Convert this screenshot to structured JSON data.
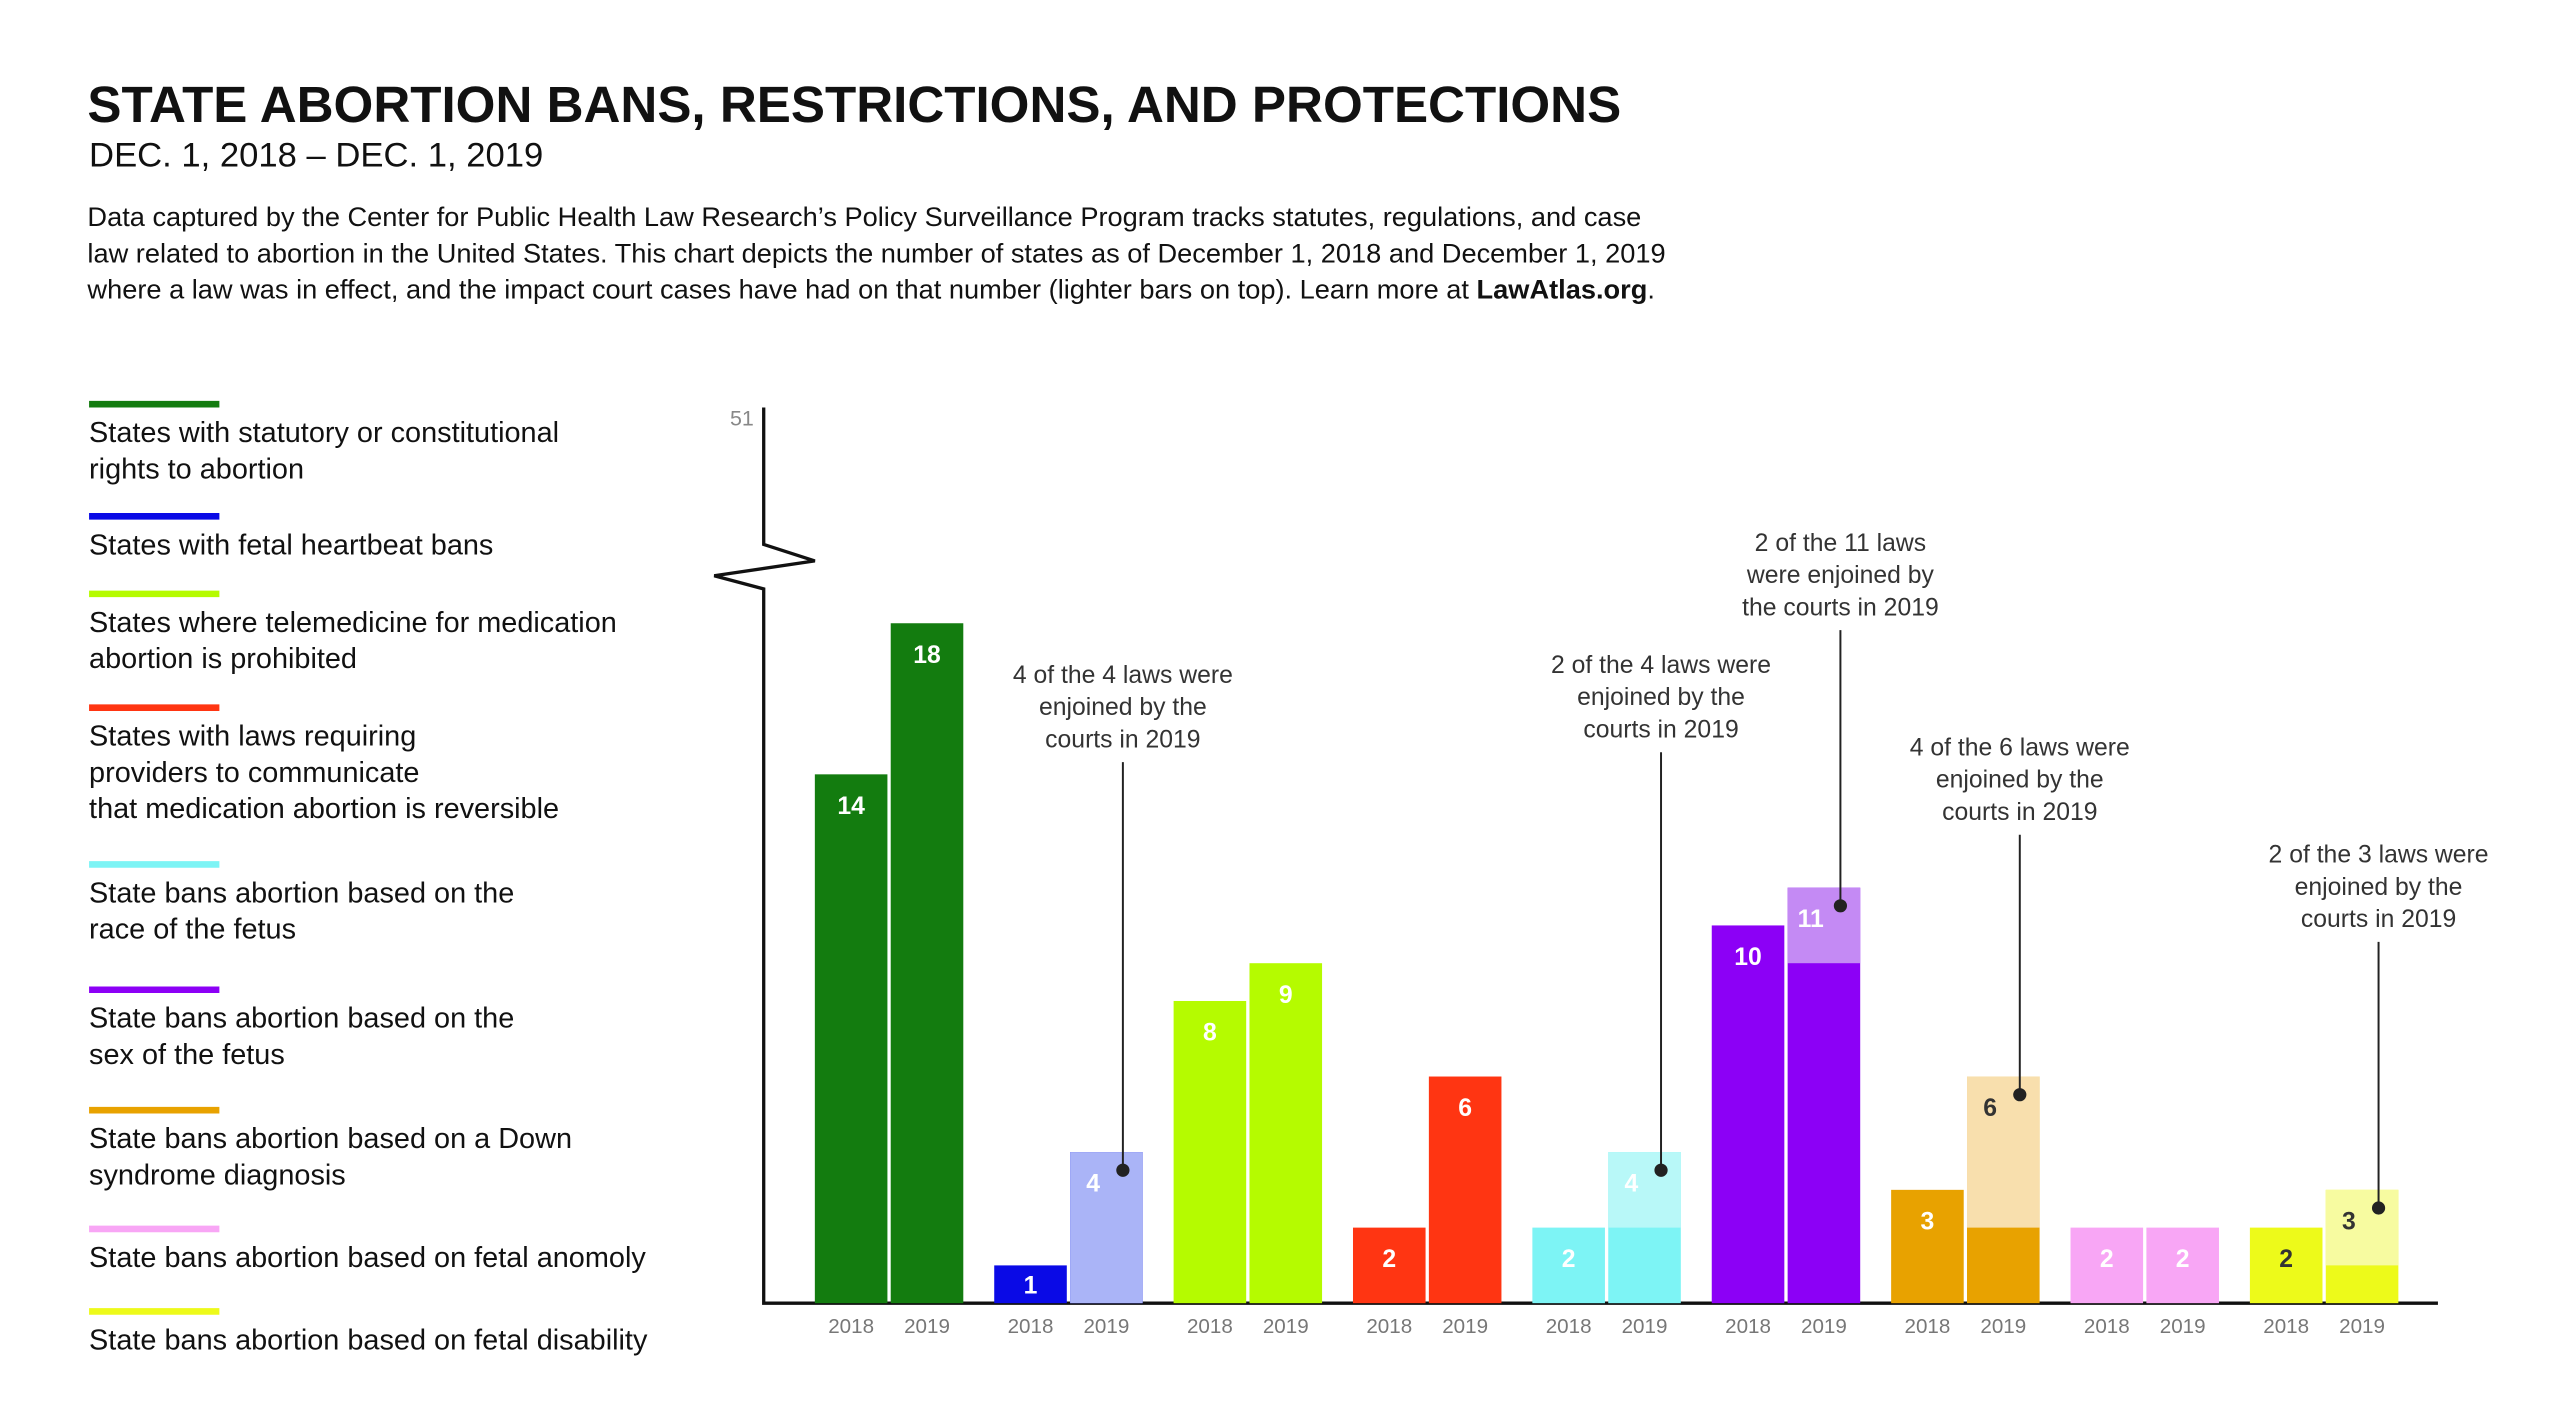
{
  "chart_data": {
    "type": "bar",
    "title": "STATE ABORTION BANS, RESTRICTIONS,  AND PROTECTIONS",
    "subtitle": "DEC. 1, 2018 – DEC. 1, 2019",
    "description": [
      "Data captured by the Center for Public Health Law Research’s Policy Surveillance Program tracks statutes, regulations, and case",
      "law related to abortion in the United States. This chart depicts the number of states as of December 1, 2018 and December 1, 2019",
      "where a law was in effect, and the impact court cases have had on that number (lighter bars on top). Learn more at "
    ],
    "link": "LawAtlas.org",
    "link_end": ".",
    "categories": [
      "2018",
      "2019"
    ],
    "ylim": [
      0,
      19.5
    ],
    "yticks": [
      51
    ],
    "axis_break": true,
    "series": [
      {
        "name": "States with statutory or constitutional\nrights to abortion",
        "color": "#137c0f",
        "values": [
          14,
          18
        ]
      },
      {
        "name": "States with fetal heartbeat bans",
        "color": "#0a0ae6",
        "enjoined_color": "#aab4f7",
        "values": [
          1,
          4
        ],
        "enjoined": [
          null,
          4
        ],
        "annotation": [
          "4 of the 4 laws were",
          "enjoined by the",
          "courts in 2019"
        ]
      },
      {
        "name": "States where telemedicine for medication\nabortion is prohibited",
        "color": "#b5fb00",
        "values": [
          8,
          9
        ]
      },
      {
        "name": "States with laws requiring\nproviders to communicate\nthat medication abortion is reversible",
        "color": "#ff3512",
        "values": [
          2,
          6
        ]
      },
      {
        "name": "State bans abortion based on the\nrace of the fetus",
        "color": "#7df4f5",
        "enjoined_color": "#b8f8f8",
        "values": [
          2,
          4
        ],
        "enjoined": [
          null,
          2
        ],
        "annotation": [
          "2 of the 4 laws were",
          "enjoined by the",
          "courts in 2019"
        ]
      },
      {
        "name": "State bans abortion based on the\nsex of the fetus",
        "color": "#8c00f6",
        "enjoined_color": "#c48af4",
        "values": [
          10,
          11
        ],
        "enjoined": [
          null,
          2
        ],
        "annotation": [
          "2 of the 11 laws",
          "were enjoined by",
          "the courts in 2019"
        ]
      },
      {
        "name": "State bans abortion based on a Down\nsyndrome diagnosis",
        "color": "#e8a200",
        "enjoined_color": "#f8dfad",
        "values": [
          3,
          6
        ],
        "enjoined": [
          null,
          4
        ],
        "annotation": [
          "4 of the 6 laws were",
          "enjoined by the",
          "courts in 2019"
        ]
      },
      {
        "name": "State bans abortion based on fetal anomoly",
        "color": "#f8a6f5",
        "values": [
          2,
          2
        ]
      },
      {
        "name": "State bans abortion based on fetal disability",
        "color": "#edfa1a",
        "enjoined_color": "#f7fba0",
        "values": [
          2,
          3
        ],
        "enjoined": [
          null,
          2
        ],
        "annotation": [
          "2 of the 3 laws were",
          "enjoined by the",
          "courts in 2019"
        ]
      }
    ]
  }
}
